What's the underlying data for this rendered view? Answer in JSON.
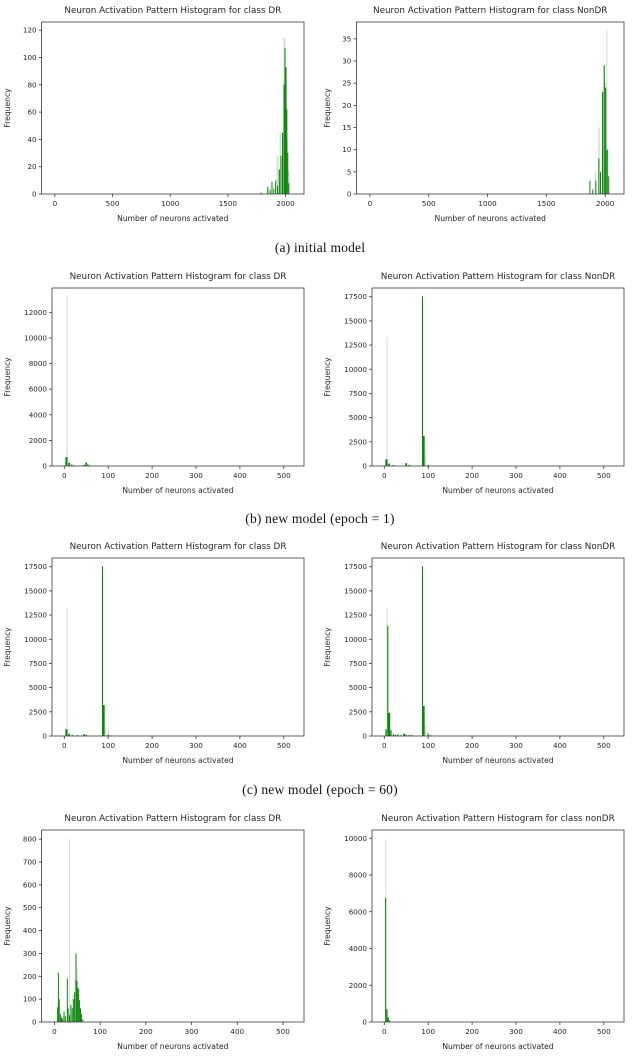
{
  "figure": {
    "captions": {
      "a": "(a) initial model",
      "b": "(b) new model (epoch = 1)",
      "c": "(c) new model (epoch = 60)"
    }
  },
  "colors": {
    "bar_green": "#0f870f",
    "bar_gray": "#d7dad4",
    "axis": "#3a3a3a",
    "text": "#262626"
  },
  "chart_data": [
    {
      "type": "bar",
      "title": "Neuron Activation Pattern Histogram for class DR",
      "xlabel": "Number of neurons activated",
      "ylabel": "Frequency",
      "xlim": [
        -115,
        2160
      ],
      "ylim": [
        0,
        126
      ],
      "xticks": [
        0,
        500,
        1000,
        1500,
        2000
      ],
      "yticks": [
        0,
        20,
        40,
        60,
        80,
        100,
        120
      ],
      "series": [
        {
          "name": "background-hist",
          "color_key": "bar_gray",
          "bars": [
            [
              1930,
              16,
              28
            ],
            [
              1956,
              14,
              45
            ],
            [
              1990,
              16,
              114
            ],
            [
              2006,
              12,
              93
            ],
            [
              2018,
              12,
              40
            ],
            [
              2028,
              10,
              17
            ]
          ]
        },
        {
          "name": "class-hist",
          "color_key": "bar_green",
          "bars": [
            [
              1788,
              10,
              1
            ],
            [
              1846,
              10,
              5
            ],
            [
              1866,
              8,
              3
            ],
            [
              1882,
              8,
              9
            ],
            [
              1898,
              8,
              4
            ],
            [
              1914,
              8,
              10
            ],
            [
              1930,
              8,
              6
            ],
            [
              1946,
              10,
              18
            ],
            [
              1960,
              8,
              28
            ],
            [
              1974,
              10,
              45
            ],
            [
              1986,
              8,
              80
            ],
            [
              1995,
              8,
              107
            ],
            [
              2003,
              8,
              93
            ],
            [
              2011,
              8,
              62
            ],
            [
              2019,
              8,
              30
            ],
            [
              2027,
              6,
              8
            ]
          ]
        }
      ]
    },
    {
      "type": "bar",
      "title": "Neuron Activation Pattern Histogram for class NonDR",
      "xlabel": "Number of neurons activated",
      "ylabel": "Frequency",
      "xlim": [
        -115,
        2160
      ],
      "ylim": [
        0,
        38.8
      ],
      "xticks": [
        0,
        500,
        1000,
        1500,
        2000
      ],
      "yticks": [
        0,
        5,
        10,
        15,
        20,
        25,
        30,
        35
      ],
      "series": [
        {
          "name": "background-hist",
          "color_key": "bar_gray",
          "bars": [
            [
              1918,
              10,
              5
            ],
            [
              1948,
              12,
              15
            ],
            [
              2000,
              12,
              25
            ],
            [
              2013,
              6,
              37
            ],
            [
              2024,
              10,
              10
            ]
          ]
        },
        {
          "name": "class-hist",
          "color_key": "bar_green",
          "bars": [
            [
              1870,
              8,
              3
            ],
            [
              1894,
              8,
              1
            ],
            [
              1920,
              8,
              3
            ],
            [
              1946,
              8,
              8
            ],
            [
              1960,
              8,
              5
            ],
            [
              1978,
              10,
              23
            ],
            [
              1992,
              10,
              29
            ],
            [
              2004,
              10,
              24
            ],
            [
              2016,
              12,
              10
            ],
            [
              2030,
              8,
              4
            ]
          ]
        }
      ]
    },
    {
      "type": "bar",
      "title": "Neuron Activation Pattern Histogram for class DR",
      "xlabel": "Number of neurons activated",
      "ylabel": "Frequency",
      "xlim": [
        -28,
        546
      ],
      "ylim": [
        0,
        13900
      ],
      "xticks": [
        0,
        100,
        200,
        300,
        400,
        500
      ],
      "yticks": [
        0,
        2000,
        4000,
        6000,
        8000,
        10000,
        12000
      ],
      "series": [
        {
          "name": "background-hist",
          "color_key": "bar_gray",
          "bars": [
            [
              6,
              2.5,
              13300
            ],
            [
              11,
              3,
              300
            ]
          ]
        },
        {
          "name": "class-hist",
          "color_key": "bar_green",
          "bars": [
            [
              5,
              5,
              700
            ],
            [
              11,
              4,
              260
            ],
            [
              17,
              3,
              120
            ],
            [
              22,
              3,
              60
            ],
            [
              30,
              3,
              40
            ],
            [
              45,
              4,
              90
            ],
            [
              50,
              4,
              280
            ],
            [
              54,
              3,
              120
            ],
            [
              59,
              3,
              60
            ],
            [
              64,
              3,
              25
            ]
          ]
        }
      ]
    },
    {
      "type": "bar",
      "title": "Neuron Activation Pattern Histogram for class NonDR",
      "xlabel": "Number of neurons activated",
      "ylabel": "Frequency",
      "xlim": [
        -28,
        546
      ],
      "ylim": [
        0,
        18400
      ],
      "xticks": [
        0,
        100,
        200,
        300,
        400,
        500
      ],
      "yticks": [
        0,
        2500,
        5000,
        7500,
        10000,
        12500,
        15000,
        17500
      ],
      "series": [
        {
          "name": "background-hist",
          "color_key": "bar_gray",
          "bars": [
            [
              6,
              2.5,
              13300
            ],
            [
              94,
              2,
              1100
            ]
          ]
        },
        {
          "name": "class-hist",
          "color_key": "bar_green",
          "bars": [
            [
              5,
              5,
              700
            ],
            [
              11,
              4,
              250
            ],
            [
              20,
              3,
              100
            ],
            [
              28,
              3,
              50
            ],
            [
              50,
              4,
              300
            ],
            [
              57,
              3,
              120
            ],
            [
              87,
              2.5,
              17550
            ],
            [
              89,
              6,
              3100
            ],
            [
              100,
              3,
              120
            ]
          ]
        }
      ]
    },
    {
      "type": "bar",
      "title": "Neuron Activation Pattern Histogram for class DR",
      "xlabel": "Number of neurons activated",
      "ylabel": "Frequency",
      "xlim": [
        -28,
        546
      ],
      "ylim": [
        0,
        18400
      ],
      "xticks": [
        0,
        100,
        200,
        300,
        400,
        500
      ],
      "yticks": [
        0,
        2500,
        5000,
        7500,
        10000,
        12500,
        15000,
        17500
      ],
      "series": [
        {
          "name": "background-hist",
          "color_key": "bar_gray",
          "bars": [
            [
              6,
              2.5,
              13250
            ],
            [
              94,
              2,
              800
            ],
            [
              101,
              3,
              600
            ]
          ]
        },
        {
          "name": "class-hist",
          "color_key": "bar_green",
          "bars": [
            [
              5,
              5,
              700
            ],
            [
              11,
              4,
              250
            ],
            [
              18,
              3,
              120
            ],
            [
              30,
              3,
              90
            ],
            [
              45,
              4,
              180
            ],
            [
              50,
              3,
              120
            ],
            [
              87,
              2.5,
              17550
            ],
            [
              89,
              6,
              3200
            ],
            [
              100,
              3,
              140
            ],
            [
              106,
              3,
              60
            ]
          ]
        }
      ]
    },
    {
      "type": "bar",
      "title": "Neuron Activation Pattern Histogram for class NonDR",
      "xlabel": "Number of neurons activated",
      "ylabel": "Frequency",
      "xlim": [
        -28,
        546
      ],
      "ylim": [
        0,
        18400
      ],
      "xticks": [
        0,
        100,
        200,
        300,
        400,
        500
      ],
      "yticks": [
        0,
        2500,
        5000,
        7500,
        10000,
        12500,
        15000,
        17500
      ],
      "series": [
        {
          "name": "background-hist",
          "color_key": "bar_gray",
          "bars": [
            [
              6,
              2.5,
              13250
            ],
            [
              94,
              2,
              1100
            ]
          ]
        },
        {
          "name": "class-hist",
          "color_key": "bar_green",
          "bars": [
            [
              4,
              3,
              700
            ],
            [
              8,
              2.5,
              11400
            ],
            [
              11,
              5,
              2400
            ],
            [
              15,
              3,
              600
            ],
            [
              21,
              3,
              200
            ],
            [
              26,
              3,
              120
            ],
            [
              31,
              3,
              160
            ],
            [
              38,
              3,
              80
            ],
            [
              45,
              4,
              260
            ],
            [
              50,
              3,
              150
            ],
            [
              57,
              3,
              100
            ],
            [
              63,
              3,
              120
            ],
            [
              87,
              2.5,
              17550
            ],
            [
              89,
              6,
              3100
            ],
            [
              100,
              3,
              250
            ],
            [
              106,
              3,
              80
            ]
          ]
        }
      ]
    },
    {
      "type": "bar",
      "title": "Neuron Activation Pattern Histogram for class DR",
      "xlabel": "Number of neurons activated",
      "ylabel": "Frequency",
      "xlim": [
        -28,
        546
      ],
      "ylim": [
        0,
        840
      ],
      "xticks": [
        0,
        100,
        200,
        300,
        400,
        500
      ],
      "yticks": [
        0,
        100,
        200,
        300,
        400,
        500,
        600,
        700,
        800
      ],
      "series": [
        {
          "name": "background-hist",
          "color_key": "bar_gray",
          "bars": [
            [
              10,
              2,
              100
            ],
            [
              33,
              1.6,
              800
            ],
            [
              40,
              2,
              120
            ],
            [
              45,
              2,
              185
            ],
            [
              50,
              2,
              240
            ]
          ]
        },
        {
          "name": "class-hist",
          "color_key": "bar_green",
          "bars": [
            [
              7,
              2,
              65
            ],
            [
              8.5,
              1.6,
              215
            ],
            [
              10.5,
              2,
              100
            ],
            [
              13,
              2,
              35
            ],
            [
              15.5,
              2,
              20
            ],
            [
              18,
              2,
              15
            ],
            [
              21,
              2,
              45
            ],
            [
              24,
              2,
              25
            ],
            [
              28,
              1.6,
              190
            ],
            [
              30,
              2,
              60
            ],
            [
              33,
              2,
              30
            ],
            [
              36,
              2,
              75
            ],
            [
              39,
              2,
              60
            ],
            [
              42,
              2,
              100
            ],
            [
              44,
              2,
              130
            ],
            [
              47,
              1.6,
              300
            ],
            [
              49,
              2,
              180
            ],
            [
              51,
              2,
              150
            ],
            [
              53,
              2,
              145
            ],
            [
              55,
              2,
              95
            ],
            [
              57,
              2,
              60
            ],
            [
              59,
              2,
              35
            ],
            [
              62,
              2,
              12
            ]
          ]
        }
      ]
    },
    {
      "type": "bar",
      "title": "Neuron Activation Pattern Histogram for class nonDR",
      "xlabel": "Number of neurons activated",
      "ylabel": "Frequency",
      "xlim": [
        -28,
        546
      ],
      "ylim": [
        0,
        10450
      ],
      "xticks": [
        0,
        100,
        200,
        300,
        400,
        500
      ],
      "yticks": [
        0,
        2000,
        4000,
        6000,
        8000,
        10000
      ],
      "series": [
        {
          "name": "background-hist",
          "color_key": "bar_gray",
          "bars": [
            [
              3,
              1.8,
              9950
            ]
          ]
        },
        {
          "name": "class-hist",
          "color_key": "bar_green",
          "bars": [
            [
              3,
              2.5,
              6750
            ],
            [
              6,
              3,
              700
            ],
            [
              9,
              3,
              250
            ],
            [
              12,
              3,
              80
            ]
          ]
        }
      ]
    }
  ]
}
